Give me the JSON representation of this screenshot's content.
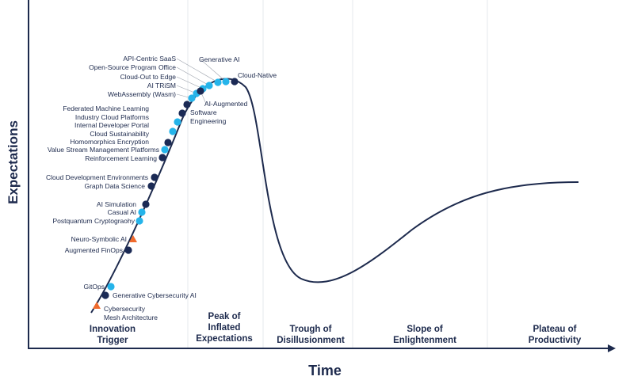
{
  "axis": {
    "y_label": "Expectations",
    "x_label": "Time"
  },
  "phases": [
    {
      "label": [
        "Innovation",
        "Trigger"
      ]
    },
    {
      "label": [
        "Peak of",
        "Inflated",
        "Expectations"
      ]
    },
    {
      "label": [
        "Trough of",
        "Disillusionment"
      ]
    },
    {
      "label": [
        "Slope of",
        "Enlightenment"
      ]
    },
    {
      "label": [
        "Plateau of",
        "Productivity"
      ]
    }
  ],
  "marker_colors": {
    "navy": "#1b2a55",
    "cyan": "#25b4ea",
    "orange": "#f06a2c"
  },
  "technologies": [
    {
      "label": [
        "API-Centric SaaS"
      ],
      "marker": "cyan"
    },
    {
      "label": [
        "Open-Source Program Office"
      ],
      "marker": "cyan"
    },
    {
      "label": [
        "Cloud-Out to Edge"
      ],
      "marker": "cyan"
    },
    {
      "label": [
        "AI TRiSM"
      ],
      "marker": "cyan"
    },
    {
      "label": [
        "WebAssembly (Wasm)"
      ],
      "marker": "cyan"
    },
    {
      "label": [
        "Generative AI"
      ],
      "marker": "cyan"
    },
    {
      "label": [
        "Cloud-Native"
      ],
      "marker": "navy"
    },
    {
      "label": [
        "AI-Augmented",
        "Software",
        "Engineering"
      ],
      "marker": "navy"
    },
    {
      "label": [
        "Federated Machine Learning"
      ],
      "marker": "navy"
    },
    {
      "label": [
        "Industry Cloud Platforms"
      ],
      "marker": "navy"
    },
    {
      "label": [
        "Internal Developer Portal"
      ],
      "marker": "cyan"
    },
    {
      "label": [
        "Cloud Sustainability"
      ],
      "marker": "cyan"
    },
    {
      "label": [
        "Homomorphics Encryption"
      ],
      "marker": "navy"
    },
    {
      "label": [
        "Value Stream Management Platforms"
      ],
      "marker": "cyan"
    },
    {
      "label": [
        "Reinforcement Learning"
      ],
      "marker": "navy"
    },
    {
      "label": [
        "Cloud Development Environments"
      ],
      "marker": "navy"
    },
    {
      "label": [
        "Graph Data Science"
      ],
      "marker": "navy"
    },
    {
      "label": [
        "AI Simulation"
      ],
      "marker": "navy"
    },
    {
      "label": [
        "Casual AI"
      ],
      "marker": "cyan"
    },
    {
      "label": [
        "Postquantum Cryptograohy"
      ],
      "marker": "cyan"
    },
    {
      "label": [
        "Neuro-Symbolic AI"
      ],
      "marker": "orange",
      "shape": "triangle"
    },
    {
      "label": [
        "Augmented FinOps"
      ],
      "marker": "navy"
    },
    {
      "label": [
        "GitOps"
      ],
      "marker": "cyan"
    },
    {
      "label": [
        "Generative Cybersecurity AI"
      ],
      "marker": "navy"
    },
    {
      "label": [
        "Cybersecurity",
        "Mesh Architecture"
      ],
      "marker": "orange",
      "shape": "triangle"
    }
  ]
}
